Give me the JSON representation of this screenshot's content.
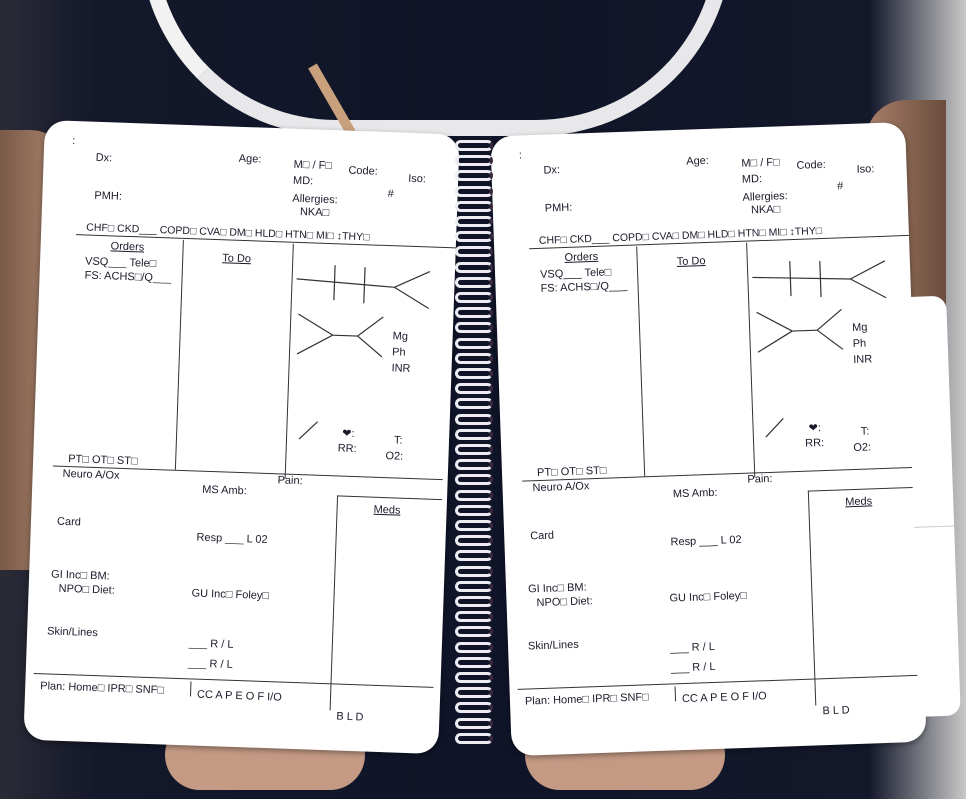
{
  "header": {
    "dots": ":",
    "dx": "Dx:",
    "age": "Age:",
    "sex": "M□ / F□",
    "code": "Code:",
    "iso": "Iso:",
    "md": "MD:",
    "hash": "#",
    "pmh": "PMH:",
    "allergies": "Allergies:",
    "nka": "NKA□"
  },
  "conditions": "CHF□  CKD___  COPD□  CVA□  DM□  HLD□  HTN□  MI□  ↕THY□",
  "orders": {
    "title": "Orders",
    "vsq": "VSQ___   Tele□",
    "fs": "FS: ACHS□/Q___"
  },
  "todo": "To Do",
  "labs": {
    "mg": "Mg",
    "ph": "Ph",
    "inr": "INR",
    "heart": "❤:",
    "t": "T:",
    "rr": "RR:",
    "o2": "O2:"
  },
  "therapy": "PT□  OT□  ST□",
  "pain": "Pain:",
  "assessment": {
    "neuro": "Neuro  A/Ox",
    "ms": "MS  Amb:",
    "card": "Card",
    "resp": "Resp  ___  L 02",
    "gi": "GI  Inc□  BM:",
    "npo": "NPO□ Diet:",
    "gu": "GU  Inc□  Foley□",
    "skin": "Skin/Lines",
    "rl1": "___  R / L",
    "rl2": "___  R / L"
  },
  "meds": "Meds",
  "plan": {
    "label": "Plan: Home□  IPR□  SNF□",
    "cc": "CC  A  P  E  O  F  I/O",
    "meals": "B      L      D"
  }
}
